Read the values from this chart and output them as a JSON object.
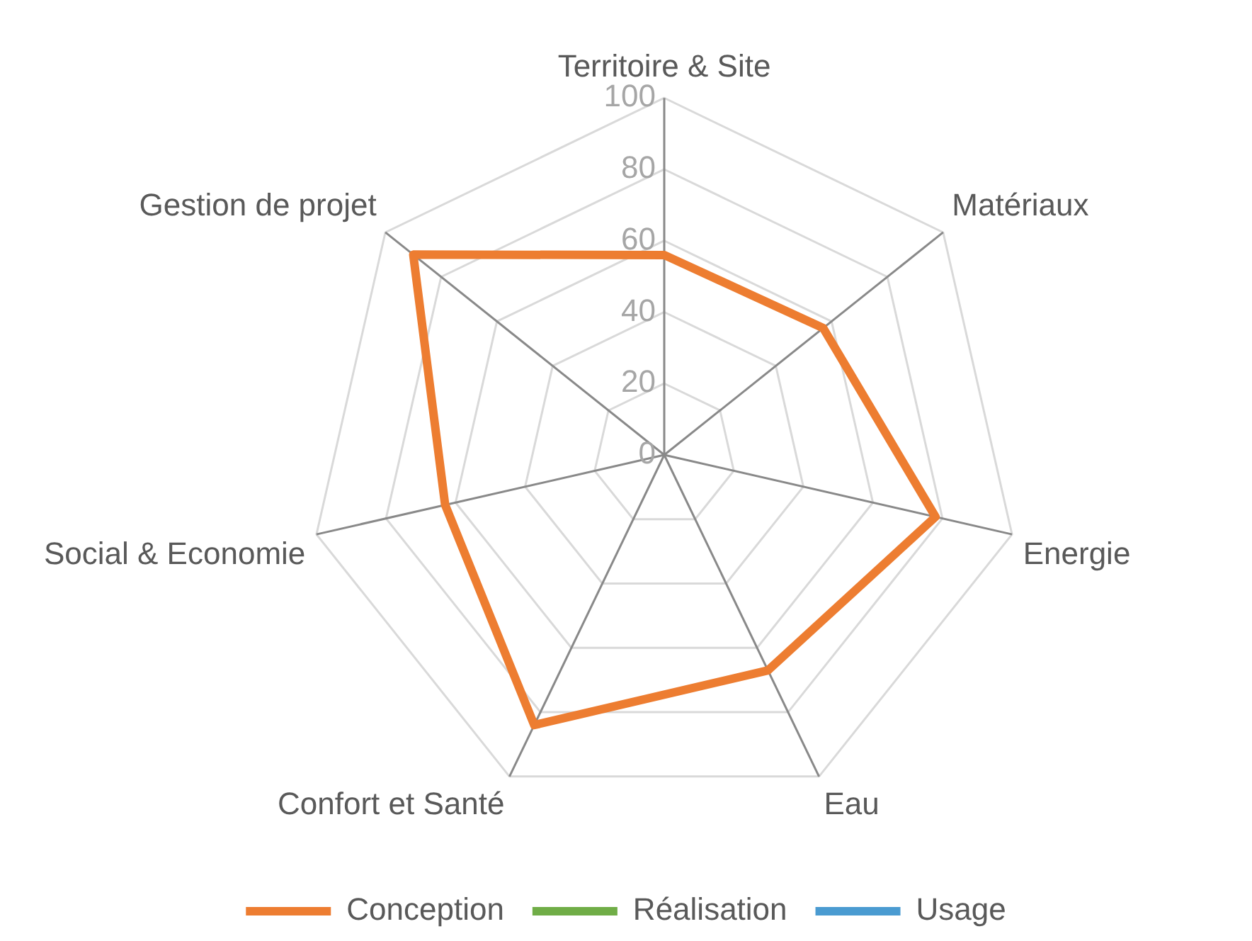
{
  "chart_data": {
    "type": "radar",
    "categories": [
      "Territoire & Site",
      "Matériaux",
      "Energie",
      "Eau",
      "Confort et Santé",
      "Social & Economie",
      "Gestion de projet"
    ],
    "series": [
      {
        "name": "Conception",
        "color": "#ed7d31",
        "values": [
          56,
          57,
          78,
          67,
          84,
          63,
          90
        ]
      },
      {
        "name": "Réalisation",
        "color": "#70ad47",
        "values": [
          null,
          null,
          null,
          null,
          null,
          null,
          null
        ]
      },
      {
        "name": "Usage",
        "color": "#4a9bd1",
        "values": [
          null,
          null,
          null,
          null,
          null,
          null,
          null
        ]
      }
    ],
    "ylim": [
      0,
      100
    ],
    "yticks": [
      0,
      20,
      40,
      60,
      80,
      100
    ],
    "grid": true,
    "legend": "bottom",
    "marker": "none",
    "line_style": "solid"
  }
}
